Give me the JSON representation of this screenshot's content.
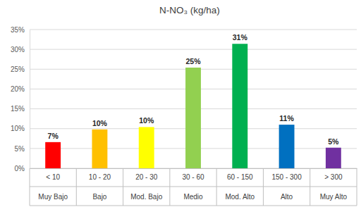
{
  "chart_data": {
    "type": "bar",
    "title": "N-NO₃ (kg/ha)",
    "categories": [
      [
        "< 10",
        "Muy Bajo"
      ],
      [
        "10 - 20",
        "Bajo"
      ],
      [
        "20 - 30",
        "Mod. Bajo"
      ],
      [
        "30 - 60",
        "Medio"
      ],
      [
        "60 - 150",
        "Mod. Alto"
      ],
      [
        "150 - 300",
        "Alto"
      ],
      [
        "> 300",
        "Muy Alto"
      ]
    ],
    "values": [
      6.6,
      9.8,
      10.4,
      25.4,
      31.4,
      11.0,
      5.2
    ],
    "value_labels": [
      "7%",
      "10%",
      "10%",
      "25%",
      "31%",
      "11%",
      "5%"
    ],
    "colors": [
      "#ff0000",
      "#ffc000",
      "#ffff00",
      "#92d050",
      "#00b050",
      "#0070c0",
      "#7030a0"
    ],
    "ylim": [
      0,
      35
    ],
    "yticks": [
      {
        "value": 0,
        "label": "0%"
      },
      {
        "value": 5,
        "label": "5%"
      },
      {
        "value": 10,
        "label": "10%"
      },
      {
        "value": 15,
        "label": "15%"
      },
      {
        "value": 20,
        "label": "20%"
      },
      {
        "value": 25,
        "label": "25%"
      },
      {
        "value": 30,
        "label": "30%"
      },
      {
        "value": 35,
        "label": "35%"
      }
    ],
    "grid": true,
    "data_labels": true
  }
}
